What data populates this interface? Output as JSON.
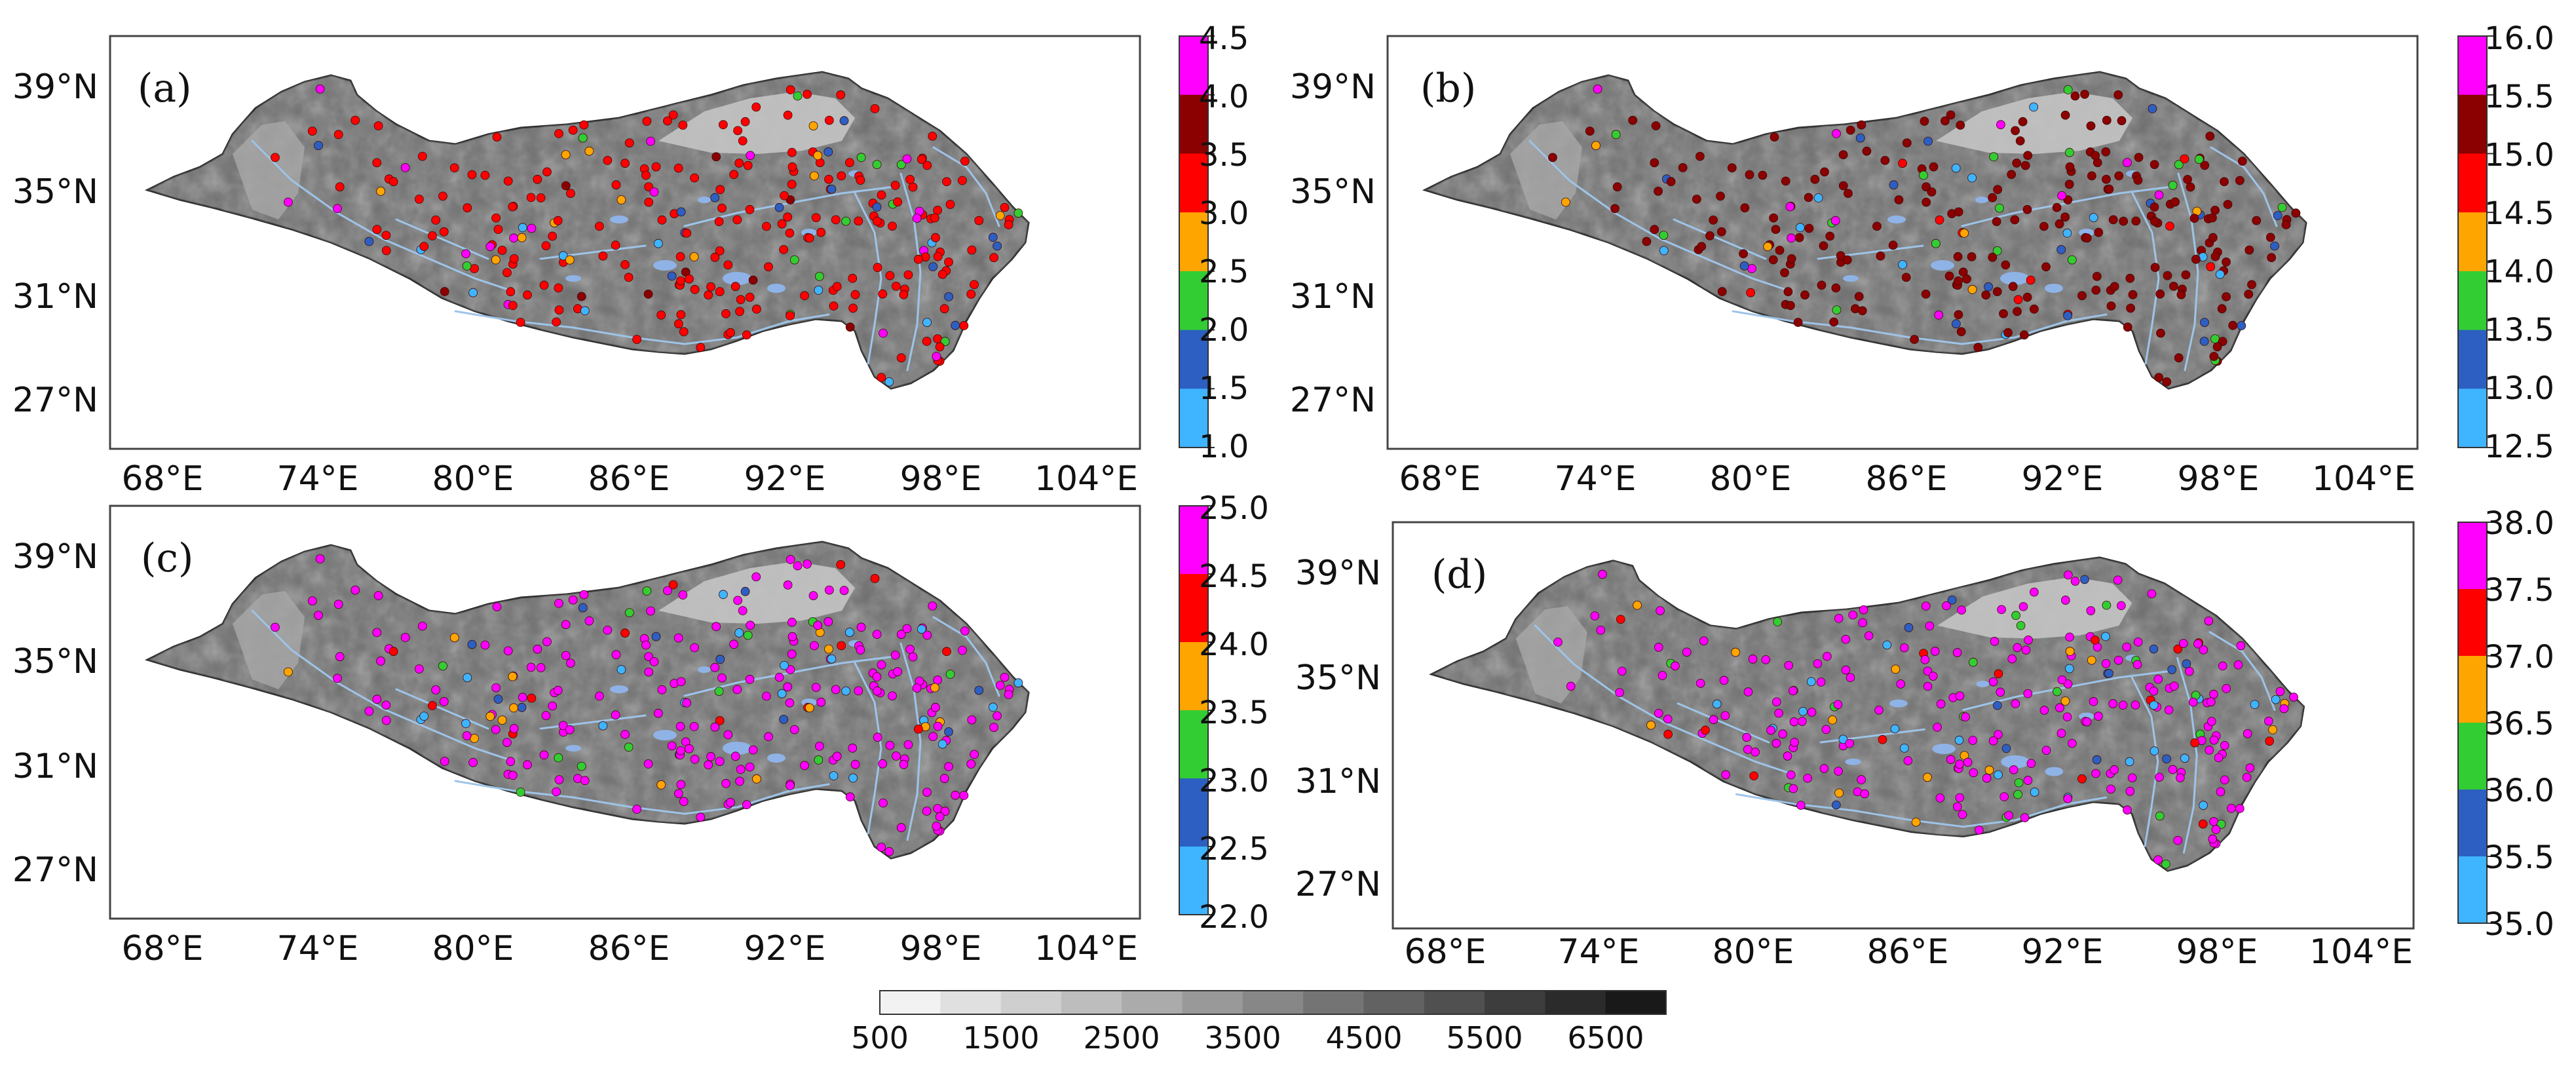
{
  "figure": {
    "panels": [
      {
        "label": "(a)",
        "lat_labels": [
          "39°N",
          "35°N",
          "31°N",
          "27°N"
        ],
        "lon_labels": [
          "68°E",
          "74°E",
          "80°E",
          "86°E",
          "92°E",
          "98°E",
          "104°E"
        ],
        "colorbar": {
          "ticks": [
            "4.5",
            "4.0",
            "3.5",
            "3.0",
            "2.5",
            "2.0",
            "1.5",
            "1.0"
          ],
          "bin_colors": [
            "#ff00ff",
            "#8b0000",
            "#ff0000",
            "#ffa500",
            "#32cd32",
            "#2c5fc1",
            "#3fb4ff"
          ]
        },
        "dominant_station_color": "#ff0000"
      },
      {
        "label": "(b)",
        "lat_labels": [
          "39°N",
          "35°N",
          "31°N",
          "27°N"
        ],
        "lon_labels": [
          "68°E",
          "74°E",
          "80°E",
          "86°E",
          "92°E",
          "98°E",
          "104°E"
        ],
        "colorbar": {
          "ticks": [
            "16.0",
            "15.5",
            "15.0",
            "14.5",
            "14.0",
            "13.5",
            "13.0",
            "12.5"
          ],
          "bin_colors": [
            "#ff00ff",
            "#8b0000",
            "#ff0000",
            "#ffa500",
            "#32cd32",
            "#2c5fc1",
            "#3fb4ff"
          ]
        },
        "dominant_station_color": "#8b0000"
      },
      {
        "label": "(c)",
        "lat_labels": [
          "39°N",
          "35°N",
          "31°N",
          "27°N"
        ],
        "lon_labels": [
          "68°E",
          "74°E",
          "80°E",
          "86°E",
          "92°E",
          "98°E",
          "104°E"
        ],
        "colorbar": {
          "ticks": [
            "25.0",
            "24.5",
            "24.0",
            "23.5",
            "23.0",
            "22.5",
            "22.0"
          ],
          "bin_colors": [
            "#ff00ff",
            "#ff0000",
            "#ffa500",
            "#32cd32",
            "#2c5fc1",
            "#3fb4ff"
          ]
        },
        "dominant_station_color": "#ff00ff"
      },
      {
        "label": "(d)",
        "lat_labels": [
          "39°N",
          "35°N",
          "31°N",
          "27°N"
        ],
        "lon_labels": [
          "68°E",
          "74°E",
          "80°E",
          "86°E",
          "92°E",
          "98°E",
          "104°E"
        ],
        "colorbar": {
          "ticks": [
            "38.0",
            "37.5",
            "37.0",
            "36.5",
            "36.0",
            "35.5",
            "35.0"
          ],
          "bin_colors": [
            "#ff00ff",
            "#ff0000",
            "#ffa500",
            "#32cd32",
            "#2c5fc1",
            "#3fb4ff"
          ]
        },
        "dominant_station_color": "#ff00ff"
      }
    ],
    "elevation_colorbar": {
      "tick_labels": [
        "500",
        "1500",
        "2500",
        "3500",
        "4500",
        "5500",
        "6500"
      ],
      "shades": [
        "#f2f2f2",
        "#e0e0e0",
        "#cfcfcf",
        "#bdbdbd",
        "#ababab",
        "#999999",
        "#878787",
        "#747474",
        "#626262",
        "#505050",
        "#3d3d3d",
        "#2b2b2b",
        "#191919"
      ]
    },
    "colors": {
      "frame": "#444444",
      "plateau_fill": "#6e6e6e",
      "basin_fill": "#c4c4c4",
      "river": "#9ec4e8",
      "lake": "#8fb3e6"
    }
  }
}
